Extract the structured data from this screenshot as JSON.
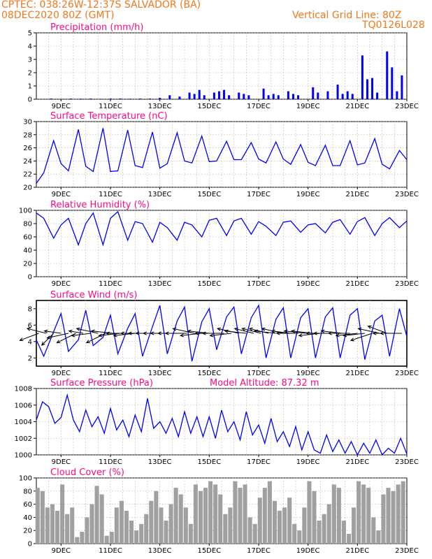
{
  "header": {
    "line1": "CPTEC:   038:26W-12:37S  SALVADOR (BA)",
    "line2": "08DEC2020 80Z (GMT)",
    "right1": "Vertical Grid Line: 80Z",
    "right2": "TQ0126L028"
  },
  "colors": {
    "title": "#ff0a82",
    "header": "#f0781e",
    "line": "#0000ff",
    "cloud": "#a0a0a0"
  },
  "chart_data": [
    {
      "type": "bar",
      "title": "Precipitation (mm/h)",
      "x_tick_labels": [
        "9DEC",
        "11DEC",
        "13DEC",
        "15DEC",
        "17DEC",
        "19DEC",
        "21DEC",
        "23DEC"
      ],
      "ylim": [
        0,
        5
      ],
      "y_ticks": [
        0,
        1,
        2,
        3,
        4,
        5
      ],
      "grid": true,
      "series": [
        {
          "x": [
            8.6,
            9.0,
            9.4,
            9.8,
            10.2,
            10.6,
            11.0,
            11.4,
            11.8,
            12.2,
            12.6,
            13.0,
            13.4,
            13.8,
            14.2,
            14.4,
            14.6,
            14.8,
            15.2,
            15.4,
            15.6,
            15.8,
            16.2,
            16.4,
            16.6,
            17.2,
            17.4,
            17.6,
            17.8,
            18.2,
            18.4,
            18.6,
            19.2,
            19.4,
            19.8,
            20.2,
            20.4,
            20.6,
            20.8,
            21.2,
            21.4,
            21.6,
            21.8,
            22.2,
            22.4,
            22.6,
            22.8
          ],
          "values": [
            0.05,
            0.03,
            0.05,
            0.04,
            0.05,
            0.03,
            0.05,
            0.05,
            0.04,
            0.05,
            0.05,
            0.1,
            0.3,
            0.2,
            0.5,
            0.4,
            0.7,
            0.3,
            0.5,
            0.6,
            0.7,
            0.3,
            0.5,
            0.4,
            0.3,
            0.8,
            0.3,
            0.4,
            0.3,
            0.6,
            0.4,
            0.3,
            0.9,
            0.5,
            0.6,
            1.1,
            0.4,
            0.6,
            0.4,
            3.3,
            1.5,
            1.6,
            0.5,
            3.6,
            2.4,
            0.6,
            1.8
          ]
        }
      ]
    },
    {
      "type": "line",
      "title": "Surface Temperature (nC)",
      "x_tick_labels": [
        "9DEC",
        "11DEC",
        "13DEC",
        "15DEC",
        "17DEC",
        "19DEC",
        "21DEC",
        "23DEC"
      ],
      "ylim": [
        20,
        30
      ],
      "y_ticks": [
        20,
        22,
        24,
        26,
        28,
        30
      ],
      "grid": true,
      "series": [
        {
          "x": [
            8.0,
            8.3,
            8.7,
            9.0,
            9.3,
            9.7,
            10.0,
            10.3,
            10.7,
            11.0,
            11.3,
            11.7,
            12.0,
            12.3,
            12.7,
            13.0,
            13.3,
            13.7,
            14.0,
            14.3,
            14.7,
            15.0,
            15.3,
            15.7,
            16.0,
            16.3,
            16.7,
            17.0,
            17.3,
            17.7,
            18.0,
            18.3,
            18.7,
            19.0,
            19.3,
            19.7,
            20.0,
            20.3,
            20.7,
            21.0,
            21.3,
            21.7,
            22.0,
            22.3,
            22.7,
            23.0
          ],
          "values": [
            20.6,
            22.2,
            27.1,
            23.6,
            22.5,
            28.8,
            23.2,
            22.4,
            29.0,
            22.4,
            22.5,
            28.7,
            23.3,
            23.0,
            28.4,
            22.9,
            23.6,
            28.3,
            24.0,
            23.7,
            27.8,
            23.9,
            24.0,
            27.0,
            24.2,
            24.2,
            26.8,
            24.3,
            23.7,
            26.9,
            24.3,
            23.5,
            26.5,
            23.8,
            23.3,
            26.4,
            23.3,
            23.3,
            27.1,
            23.4,
            23.7,
            27.4,
            23.5,
            22.8,
            25.6,
            24.2
          ]
        }
      ]
    },
    {
      "type": "line",
      "title": "Relative Humidity (%)",
      "x_tick_labels": [
        "9DEC",
        "11DEC",
        "13DEC",
        "15DEC",
        "17DEC",
        "19DEC",
        "21DEC",
        "23DEC"
      ],
      "ylim": [
        0,
        100
      ],
      "y_ticks": [
        0,
        20,
        40,
        60,
        80,
        100
      ],
      "grid": true,
      "series": [
        {
          "x": [
            8.0,
            8.3,
            8.7,
            9.0,
            9.3,
            9.7,
            10.0,
            10.3,
            10.7,
            11.0,
            11.3,
            11.7,
            12.0,
            12.3,
            12.7,
            13.0,
            13.3,
            13.7,
            14.0,
            14.3,
            14.7,
            15.0,
            15.3,
            15.7,
            16.0,
            16.3,
            16.7,
            17.0,
            17.3,
            17.7,
            18.0,
            18.3,
            18.7,
            19.0,
            19.3,
            19.7,
            20.0,
            20.3,
            20.7,
            21.0,
            21.3,
            21.7,
            22.0,
            22.3,
            22.7,
            23.0
          ],
          "values": [
            96,
            88,
            58,
            78,
            88,
            48,
            80,
            96,
            48,
            88,
            98,
            55,
            83,
            80,
            52,
            82,
            74,
            55,
            82,
            78,
            60,
            85,
            88,
            62,
            84,
            88,
            64,
            83,
            76,
            62,
            82,
            84,
            67,
            78,
            80,
            66,
            82,
            86,
            64,
            83,
            89,
            62,
            80,
            89,
            74,
            84
          ]
        }
      ]
    },
    {
      "type": "line",
      "title": "Surface Wind (m/s)",
      "x_tick_labels": [
        "9DEC",
        "11DEC",
        "13DEC",
        "15DEC",
        "17DEC",
        "19DEC",
        "21DEC",
        "23DEC"
      ],
      "ylim": [
        1,
        9
      ],
      "y_ticks": [
        2,
        4,
        6,
        8
      ],
      "grid": true,
      "series": [
        {
          "x": [
            8.0,
            8.3,
            8.7,
            9.0,
            9.3,
            9.7,
            10.0,
            10.3,
            10.7,
            11.0,
            11.3,
            11.7,
            12.0,
            12.3,
            12.7,
            13.0,
            13.3,
            13.7,
            14.0,
            14.3,
            14.7,
            15.0,
            15.3,
            15.7,
            16.0,
            16.3,
            16.7,
            17.0,
            17.3,
            17.7,
            18.0,
            18.3,
            18.7,
            19.0,
            19.3,
            19.7,
            20.0,
            20.3,
            20.7,
            21.0,
            21.3,
            21.7,
            22.0,
            22.3,
            22.7,
            23.0
          ],
          "values": [
            4.2,
            2.2,
            5.2,
            7.4,
            2.8,
            4.2,
            7.8,
            3.5,
            4.5,
            7.2,
            2.5,
            5.6,
            7.4,
            2.2,
            5.8,
            8.4,
            2.5,
            6.5,
            8.2,
            1.6,
            6.4,
            8.0,
            3.0,
            7.0,
            8.2,
            2.5,
            6.9,
            8.4,
            2.0,
            6.7,
            8.1,
            2.0,
            6.9,
            8.0,
            2.0,
            7.0,
            8.1,
            2.0,
            7.2,
            8.0,
            1.8,
            6.5,
            7.2,
            2.2,
            8.0,
            4.6
          ]
        }
      ],
      "wind_vectors": {
        "x": [
          8.1,
          8.4,
          8.7,
          9.0,
          9.3,
          9.6,
          9.9,
          10.2,
          10.5,
          10.8,
          11.1,
          11.4,
          11.7,
          12.0,
          12.3,
          12.6,
          12.9,
          13.2,
          13.5,
          13.8,
          14.1,
          14.4,
          14.7,
          15.0,
          15.3,
          15.6,
          15.9,
          16.2,
          16.5,
          16.8,
          17.1,
          17.4,
          17.7,
          18.0,
          18.3,
          18.6,
          18.9,
          19.2,
          19.5,
          19.8,
          20.1,
          20.4,
          20.7,
          21.0,
          21.3,
          21.6,
          21.9,
          22.2,
          22.5,
          22.8
        ],
        "u": [
          -0.8,
          -0.8,
          -0.5,
          -0.7,
          -0.9,
          -0.8,
          -0.6,
          -0.8,
          -0.9,
          -0.8,
          -0.9,
          -0.9,
          -0.9,
          -0.9,
          -0.9,
          -0.9,
          -0.9,
          -0.9,
          -0.9,
          -0.9,
          -0.9,
          -0.9,
          -0.9,
          -0.9,
          -0.9,
          -0.9,
          -0.9,
          -0.9,
          -0.9,
          -0.8,
          -0.8,
          -0.8,
          -0.9,
          -0.9,
          -0.8,
          -0.9,
          -0.9,
          -0.9,
          -0.9,
          -0.9,
          -0.9,
          -0.9,
          -0.9,
          -0.9,
          -0.9,
          -0.9,
          -0.9,
          -0.8,
          -0.9,
          -0.9
        ],
        "v": [
          -0.3,
          0.2,
          -0.5,
          0.1,
          -0.2,
          -0.4,
          0.1,
          -0.1,
          0.2,
          -0.4,
          0.1,
          -0.1,
          0.0,
          -0.1,
          0.0,
          0.0,
          0.0,
          0.0,
          0.0,
          0.0,
          0.0,
          0.2,
          -0.1,
          0.1,
          0.0,
          0.0,
          -0.1,
          0.2,
          0.1,
          0.2,
          0.2,
          0.2,
          0.1,
          0.2,
          0.1,
          0.0,
          0.1,
          0.1,
          -0.1,
          0.0,
          0.0,
          0.1,
          0.0,
          -0.1,
          -0.1,
          -0.3,
          0.2,
          0.3,
          0.0,
          0.0
        ]
      }
    },
    {
      "type": "line",
      "title": "Surface Pressure (hPa)",
      "annotation": "Model Altitude: 87.32 m",
      "x_tick_labels": [
        "9DEC",
        "11DEC",
        "13DEC",
        "15DEC",
        "17DEC",
        "19DEC",
        "21DEC",
        "23DEC"
      ],
      "ylim": [
        1000,
        1008
      ],
      "y_ticks": [
        1000,
        1002,
        1004,
        1006,
        1008
      ],
      "grid": true,
      "series": [
        {
          "x": [
            8.0,
            8.25,
            8.5,
            8.75,
            9.0,
            9.25,
            9.5,
            9.75,
            10.0,
            10.25,
            10.5,
            10.75,
            11.0,
            11.25,
            11.5,
            11.75,
            12.0,
            12.25,
            12.5,
            12.75,
            13.0,
            13.25,
            13.5,
            13.75,
            14.0,
            14.25,
            14.5,
            14.75,
            15.0,
            15.25,
            15.5,
            15.75,
            16.0,
            16.25,
            16.5,
            16.75,
            17.0,
            17.25,
            17.5,
            17.75,
            18.0,
            18.25,
            18.5,
            18.75,
            19.0,
            19.25,
            19.5,
            19.75,
            20.0,
            20.25,
            20.5,
            20.75,
            21.0,
            21.25,
            21.5,
            21.75,
            22.0,
            22.25,
            22.5,
            22.75,
            23.0
          ],
          "values": [
            1004.2,
            1006.4,
            1005.8,
            1003.8,
            1004.5,
            1007.2,
            1004.2,
            1002.8,
            1005.4,
            1003.4,
            1004.6,
            1002.6,
            1005.6,
            1003.0,
            1004.2,
            1002.2,
            1004.8,
            1002.8,
            1006.8,
            1003.2,
            1004.0,
            1002.6,
            1004.4,
            1002.2,
            1005.2,
            1002.6,
            1004.6,
            1002.2,
            1004.6,
            1002.0,
            1005.4,
            1002.8,
            1004.0,
            1001.8,
            1005.2,
            1002.4,
            1003.6,
            1001.4,
            1004.4,
            1001.6,
            1002.8,
            1001.0,
            1003.4,
            1000.6,
            1002.8,
            1000.6,
            1000.2,
            1002.4,
            1000.4,
            1001.8,
            1000.2,
            1001.6,
            1000.0,
            1001.4,
            1000.2,
            1001.8,
            1000.0,
            1000.8,
            1000.2,
            1002.0,
            1000.1
          ]
        }
      ]
    },
    {
      "type": "bar",
      "title": "Cloud Cover (%)",
      "x_tick_labels": [
        "9DEC",
        "11DEC",
        "13DEC",
        "15DEC",
        "17DEC",
        "19DEC",
        "21DEC",
        "23DEC"
      ],
      "ylim": [
        0,
        100
      ],
      "y_ticks": [
        0,
        20,
        40,
        60,
        80,
        100
      ],
      "grid": true,
      "series": [
        {
          "x": [
            8.05,
            8.25,
            8.45,
            8.65,
            8.85,
            9.05,
            9.25,
            9.45,
            9.65,
            9.85,
            10.05,
            10.25,
            10.45,
            10.65,
            10.85,
            11.05,
            11.25,
            11.45,
            11.65,
            11.85,
            12.05,
            12.25,
            12.45,
            12.65,
            12.85,
            13.05,
            13.25,
            13.45,
            13.65,
            13.85,
            14.05,
            14.25,
            14.45,
            14.65,
            14.85,
            15.05,
            15.25,
            15.45,
            15.65,
            15.85,
            16.05,
            16.25,
            16.45,
            16.65,
            16.85,
            17.05,
            17.25,
            17.45,
            17.65,
            17.85,
            18.05,
            18.25,
            18.45,
            18.65,
            18.85,
            19.05,
            19.25,
            19.45,
            19.65,
            19.85,
            20.05,
            20.25,
            20.45,
            20.65,
            20.85,
            21.05,
            21.25,
            21.45,
            21.65,
            21.85,
            22.05,
            22.25,
            22.45,
            22.65,
            22.85
          ],
          "values": [
            85,
            80,
            55,
            60,
            50,
            90,
            45,
            55,
            10,
            18,
            40,
            60,
            88,
            75,
            12,
            18,
            55,
            65,
            50,
            35,
            20,
            30,
            45,
            65,
            80,
            55,
            35,
            60,
            85,
            75,
            55,
            30,
            90,
            80,
            85,
            95,
            90,
            75,
            45,
            55,
            95,
            85,
            90,
            40,
            30,
            70,
            85,
            95,
            65,
            50,
            55,
            70,
            30,
            20,
            55,
            95,
            80,
            35,
            45,
            60,
            90,
            85,
            35,
            15,
            55,
            95,
            90,
            85,
            40,
            20,
            75,
            85,
            80,
            90,
            95
          ]
        }
      ]
    }
  ]
}
